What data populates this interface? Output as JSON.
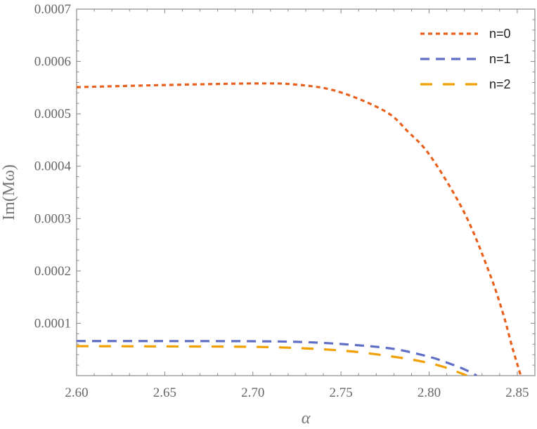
{
  "chart_data": {
    "type": "line",
    "title": "",
    "xlabel": "α",
    "ylabel": "Im(Mω)",
    "xlim": [
      2.6,
      2.86
    ],
    "ylim": [
      0,
      0.0007
    ],
    "grid": false,
    "legend_position": "top-right",
    "x_ticks": [
      "2.60",
      "2.65",
      "2.70",
      "2.75",
      "2.80",
      "2.85"
    ],
    "y_ticks": [
      "0.0001",
      "0.0002",
      "0.0003",
      "0.0004",
      "0.0005",
      "0.0006",
      "0.0007"
    ],
    "series": [
      {
        "name": "n=0",
        "color": "#E8601C",
        "dash": "dotted",
        "x": [
          2.6,
          2.65,
          2.7,
          2.724,
          2.748,
          2.775,
          2.788,
          2.801,
          2.82,
          2.834,
          2.842,
          2.847,
          2.852
        ],
        "values": [
          0.000551,
          0.000555,
          0.000558,
          0.000556,
          0.000543,
          0.000505,
          0.000466,
          0.000418,
          0.000311,
          0.000198,
          0.000118,
          5.6e-05,
          0.0
        ]
      },
      {
        "name": "n=1",
        "color": "#5F6FC8",
        "dash": "dashed",
        "x": [
          2.6,
          2.65,
          2.7,
          2.73,
          2.756,
          2.78,
          2.8,
          2.81,
          2.82,
          2.827
        ],
        "values": [
          6.61e-05,
          6.6e-05,
          6.57e-05,
          6.4e-05,
          5.9e-05,
          5.1e-05,
          3.6e-05,
          2.5e-05,
          1.2e-05,
          0.0
        ]
      },
      {
        "name": "n=2",
        "color": "#F0A000",
        "dash": "long-dashed",
        "x": [
          2.6,
          2.65,
          2.7,
          2.73,
          2.758,
          2.785,
          2.8,
          2.81,
          2.8215
        ],
        "values": [
          5.63e-05,
          5.58e-05,
          5.5e-05,
          5.2e-05,
          4.56e-05,
          3.35e-05,
          2.4e-05,
          1.47e-05,
          0.0
        ]
      }
    ]
  }
}
